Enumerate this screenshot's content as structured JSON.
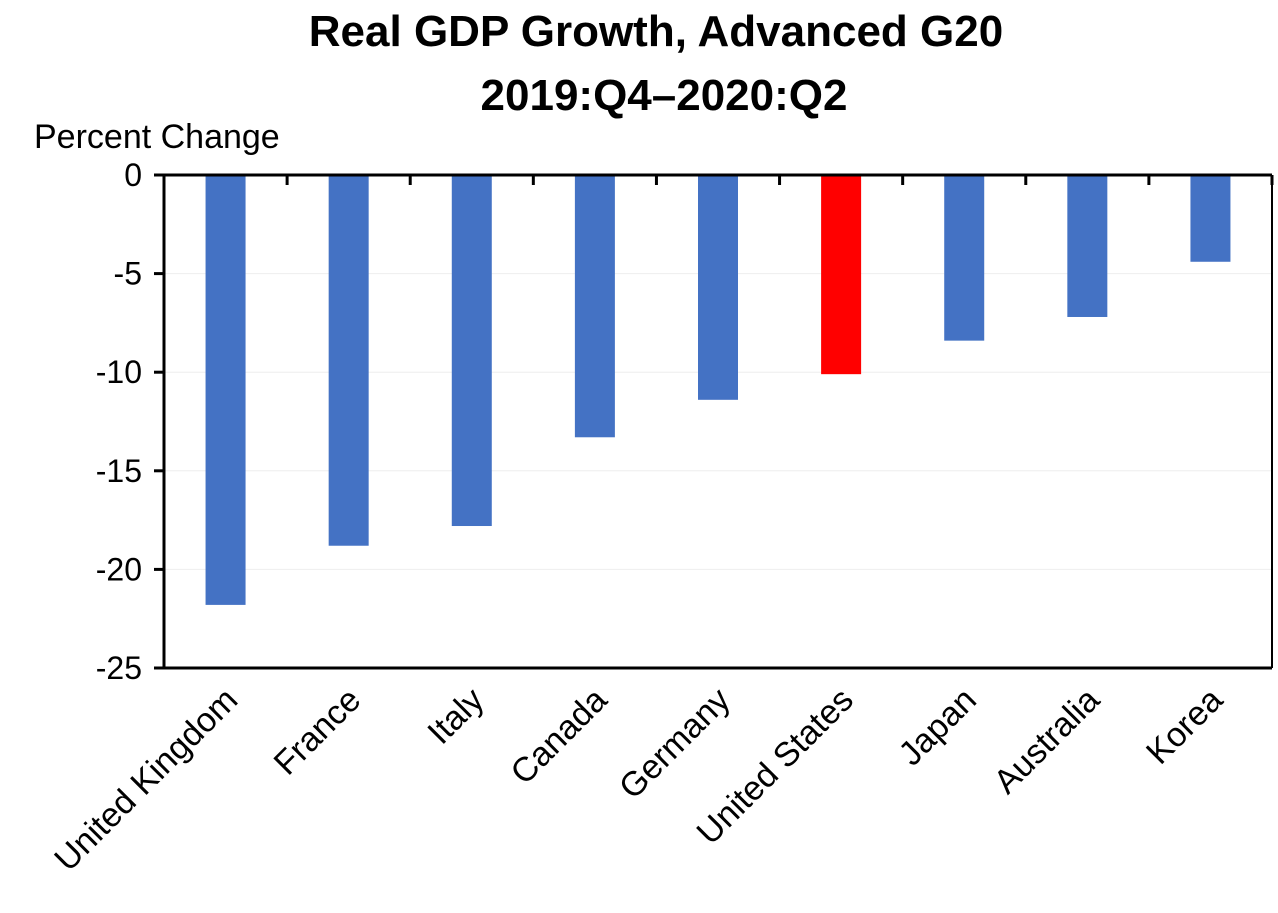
{
  "chart_data": {
    "type": "bar",
    "title": "Real GDP Growth, Advanced G20",
    "subtitle": "2019:Q4–2020:Q2",
    "ylabel": "Percent Change",
    "xlabel": "",
    "ylim": [
      -25,
      0
    ],
    "yticks": [
      "0",
      "-5",
      "-10",
      "-15",
      "-20",
      "-25"
    ],
    "grid": true,
    "legend": "none",
    "categories": [
      "United Kingdom",
      "France",
      "Italy",
      "Canada",
      "Germany",
      "United States",
      "Japan",
      "Australia",
      "Korea"
    ],
    "values": [
      -21.8,
      -18.8,
      -17.8,
      -13.3,
      -11.4,
      -10.1,
      -8.4,
      -7.2,
      -4.4
    ],
    "colors": [
      "#4472C4",
      "#4472C4",
      "#4472C4",
      "#4472C4",
      "#4472C4",
      "#FF0000",
      "#4472C4",
      "#4472C4",
      "#4472C4"
    ],
    "highlight": "United States"
  }
}
